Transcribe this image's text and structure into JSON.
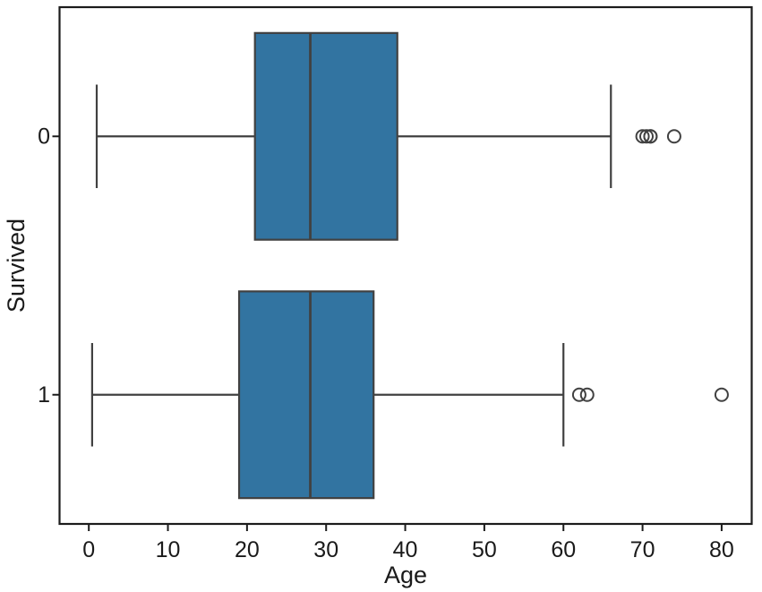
{
  "figure": {
    "background": "#ffffff"
  },
  "chart_data": {
    "type": "boxplot",
    "orientation": "horizontal",
    "title": "",
    "xlabel": "Age",
    "ylabel": "Survived",
    "categories": [
      "0",
      "1"
    ],
    "xticks": [
      0,
      10,
      20,
      30,
      40,
      50,
      60,
      70,
      80
    ],
    "xlim": [
      -3.7,
      83.8
    ],
    "ylim": [
      -0.5,
      1.5
    ],
    "grid": false,
    "legend": null,
    "box_fill": "#3274a1",
    "line_color": "#414141",
    "spine_color": "#1c1c1c",
    "box_width": 0.8,
    "cap_width": 0.4,
    "groups": [
      {
        "category": "0",
        "whisker_low": 1.0,
        "q1": 21,
        "median": 28,
        "q3": 39,
        "whisker_high": 66,
        "outliers": [
          70,
          70.5,
          71,
          71,
          74
        ]
      },
      {
        "category": "1",
        "whisker_low": 0.42,
        "q1": 19,
        "median": 28,
        "q3": 36,
        "whisker_high": 60,
        "outliers": [
          62,
          63,
          80
        ]
      }
    ]
  }
}
